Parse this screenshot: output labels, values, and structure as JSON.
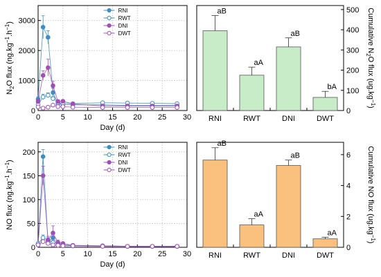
{
  "chart_data": [
    {
      "type": "line",
      "panel": "top-left",
      "title": "",
      "xlabel": "Day (d)",
      "ylabel": "N2O flux (ng.kg-1.h-1)",
      "ylabel_parts": [
        "N",
        "2",
        "O flux (ng.kg",
        "−1",
        ".h",
        "−1",
        ")"
      ],
      "xlim": [
        0,
        30
      ],
      "ylim": [
        0,
        3500
      ],
      "xticks": [
        0,
        5,
        10,
        15,
        20,
        25,
        30
      ],
      "yticks": [
        0,
        1000,
        2000,
        3000
      ],
      "grid": true,
      "legend": "top-center",
      "x": [
        0,
        1,
        2,
        3,
        4,
        5,
        7,
        13,
        18,
        23,
        28
      ],
      "series": [
        {
          "name": "RNI",
          "color": "#3a8fc4",
          "marker": "filled",
          "values": [
            380,
            2780,
            2440,
            600,
            230,
            200,
            190,
            190,
            170,
            170,
            170
          ],
          "errors": [
            80,
            380,
            220,
            150,
            40,
            30,
            25,
            30,
            25,
            25,
            25
          ]
        },
        {
          "name": "RWT",
          "color": "#3a8fc4",
          "marker": "open",
          "values": [
            200,
            450,
            510,
            400,
            260,
            240,
            230,
            260,
            250,
            240,
            230
          ],
          "errors": [
            50,
            90,
            80,
            60,
            40,
            30,
            30,
            40,
            30,
            30,
            30
          ]
        },
        {
          "name": "DNI",
          "color": "#a14fb5",
          "marker": "filled",
          "values": [
            300,
            1170,
            1430,
            830,
            300,
            310,
            220,
            150,
            150,
            150,
            150
          ],
          "errors": [
            60,
            150,
            280,
            140,
            60,
            40,
            30,
            30,
            25,
            25,
            25
          ]
        },
        {
          "name": "DWT",
          "color": "#a14fb5",
          "marker": "open",
          "values": [
            120,
            80,
            110,
            180,
            130,
            130,
            110,
            100,
            100,
            100,
            100
          ],
          "errors": [
            30,
            30,
            30,
            40,
            30,
            30,
            25,
            25,
            25,
            25,
            25
          ]
        }
      ]
    },
    {
      "type": "bar",
      "panel": "top-right",
      "title": "",
      "xlabel": "",
      "ylabel": "Cumulative N2O flux (ug.kg-1)",
      "ylabel_parts": [
        "Cumulative N",
        "2",
        "O flux (ug.kg",
        "−1",
        ")"
      ],
      "ylim": [
        0,
        520
      ],
      "yticks": [
        0,
        100,
        200,
        300,
        400,
        500
      ],
      "categories": [
        "RNI",
        "RWT",
        "DNI",
        "DWT"
      ],
      "values": [
        395,
        175,
        315,
        65
      ],
      "errors": [
        75,
        40,
        45,
        30
      ],
      "labels": [
        "aB",
        "aA",
        "aB",
        "bA"
      ],
      "color": "#c8ebc8"
    },
    {
      "type": "line",
      "panel": "bottom-left",
      "title": "",
      "xlabel": "Day (d)",
      "ylabel": "NO flux (ng.kg-1.h-1)",
      "ylabel_parts": [
        "NO flux (ng.kg",
        "−1",
        ".h",
        "−1",
        ")"
      ],
      "xlim": [
        0,
        30
      ],
      "ylim": [
        0,
        220
      ],
      "xticks": [
        0,
        5,
        10,
        15,
        20,
        25,
        30
      ],
      "yticks": [
        0,
        50,
        100,
        150,
        200
      ],
      "grid": true,
      "legend": "top-center",
      "x": [
        0,
        1,
        2,
        3,
        4,
        5,
        7,
        13,
        18,
        23,
        28
      ],
      "series": [
        {
          "name": "RNI",
          "color": "#3a8fc4",
          "marker": "filled",
          "values": [
            5,
            190,
            10,
            20,
            8,
            5,
            4,
            3,
            2,
            2,
            2
          ],
          "errors": [
            2,
            15,
            5,
            8,
            3,
            2,
            2,
            1,
            1,
            1,
            1
          ]
        },
        {
          "name": "RWT",
          "color": "#3a8fc4",
          "marker": "open",
          "values": [
            8,
            20,
            15,
            10,
            8,
            5,
            3,
            3,
            2,
            2,
            2
          ],
          "errors": [
            3,
            6,
            5,
            4,
            3,
            2,
            2,
            1,
            1,
            1,
            1
          ]
        },
        {
          "name": "DNI",
          "color": "#a14fb5",
          "marker": "filled",
          "values": [
            5,
            150,
            15,
            30,
            10,
            8,
            4,
            3,
            2,
            2,
            2
          ],
          "errors": [
            2,
            20,
            8,
            15,
            5,
            3,
            2,
            1,
            1,
            1,
            1
          ]
        },
        {
          "name": "DWT",
          "color": "#a14fb5",
          "marker": "open",
          "values": [
            5,
            12,
            8,
            5,
            4,
            3,
            3,
            2,
            2,
            2,
            2
          ],
          "errors": [
            2,
            4,
            3,
            2,
            2,
            1,
            1,
            1,
            1,
            1,
            1
          ]
        }
      ]
    },
    {
      "type": "bar",
      "panel": "bottom-right",
      "title": "",
      "xlabel": "",
      "ylabel": "Cumulative NO flux (ug.kg-1)",
      "ylabel_parts": [
        "Cumulative NO flux (ug.kg",
        "−1",
        ")"
      ],
      "ylim": [
        0,
        6.8
      ],
      "yticks": [
        0,
        2,
        4,
        6
      ],
      "categories": [
        "RNI",
        "RWT",
        "DNI",
        "DWT"
      ],
      "values": [
        5.65,
        1.45,
        5.3,
        0.55
      ],
      "errors": [
        0.8,
        0.4,
        0.35,
        0.1
      ],
      "labels": [
        "aB",
        "aA",
        "aB",
        "aA"
      ],
      "color": "#f9c07e"
    }
  ]
}
